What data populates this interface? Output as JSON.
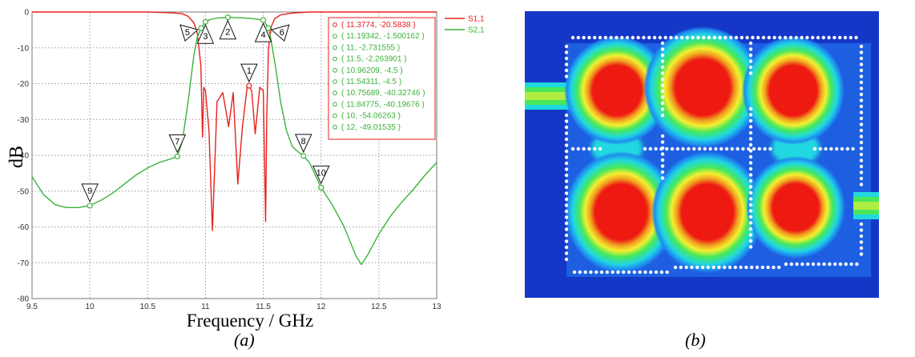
{
  "chart_data": {
    "type": "line",
    "xlabel": "Frequency / GHz",
    "ylabel": "dB",
    "xlim": [
      9.5,
      13
    ],
    "ylim": [
      -80,
      0
    ],
    "x_ticks": [
      "9.5",
      "10",
      "10.5",
      "11",
      "11.5",
      "12",
      "12.5",
      "13"
    ],
    "y_ticks": [
      "0",
      "-10",
      "-20",
      "-30",
      "-40",
      "-50",
      "-60",
      "-70",
      "-80"
    ],
    "grid": true,
    "legend_position": "top-right, outside plot",
    "series": [
      {
        "name": "S1,1",
        "color": "#e8201c",
        "x": [
          9.5,
          10.5,
          10.7,
          10.8,
          10.85,
          10.9,
          10.93,
          10.96,
          10.975,
          10.985,
          11.0,
          11.03,
          11.06,
          11.1,
          11.15,
          11.2,
          11.24,
          11.28,
          11.32,
          11.36,
          11.377,
          11.4,
          11.43,
          11.47,
          11.5,
          11.52,
          11.53,
          11.545,
          11.57,
          11.6,
          11.65,
          11.75,
          11.9,
          13.0
        ],
        "y": [
          0,
          0,
          -0.2,
          -0.5,
          -1.2,
          -3,
          -6,
          -15,
          -35,
          -21,
          -22,
          -33,
          -61,
          -25,
          -22.5,
          -32,
          -22.5,
          -48,
          -32,
          -21,
          -20.6,
          -22,
          -34,
          -21,
          -22,
          -58.5,
          -30,
          -10,
          -4,
          -1.8,
          -0.8,
          -0.3,
          0,
          0
        ]
      },
      {
        "name": "S2,1",
        "color": "#3bb23b",
        "x": [
          9.5,
          9.6,
          9.7,
          9.8,
          9.9,
          10.0,
          10.1,
          10.2,
          10.3,
          10.4,
          10.5,
          10.6,
          10.7,
          10.757,
          10.8,
          10.85,
          10.9,
          10.93,
          10.962,
          10.98,
          11.0,
          11.05,
          11.1,
          11.193,
          11.3,
          11.4,
          11.5,
          11.52,
          11.543,
          11.56,
          11.6,
          11.65,
          11.7,
          11.75,
          11.8,
          11.848,
          11.9,
          12.0,
          12.1,
          12.2,
          12.25,
          12.3,
          12.35,
          12.4,
          12.5,
          12.6,
          12.7,
          12.8,
          12.9,
          13.0
        ],
        "y": [
          -46,
          -51,
          -53.8,
          -54.6,
          -54.6,
          -54.06,
          -52.5,
          -50.5,
          -48,
          -45.5,
          -43.5,
          -42,
          -41,
          -40.3,
          -36,
          -25,
          -12,
          -7,
          -4.5,
          -3.7,
          -2.73,
          -2,
          -1.7,
          -1.5,
          -1.6,
          -1.8,
          -2.26,
          -3.2,
          -4.5,
          -6.5,
          -14,
          -25,
          -33,
          -37.5,
          -39,
          -40.2,
          -42,
          -49.0,
          -54,
          -60,
          -64,
          -68,
          -70.5,
          -68,
          -62,
          -57,
          -53,
          -49.5,
          -45.5,
          -42
        ]
      }
    ],
    "markers": [
      {
        "label": "1",
        "x": 11.3774,
        "y": -20.5838,
        "side": "above"
      },
      {
        "label": "2",
        "x": 11.19342,
        "y": -1.500162,
        "side": "below"
      },
      {
        "label": "3",
        "x": 11,
        "y": -2.731555,
        "side": "below"
      },
      {
        "label": "4",
        "x": 11.5,
        "y": -2.263901,
        "side": "below"
      },
      {
        "label": "5",
        "x": 10.96209,
        "y": -4.5,
        "side": "left"
      },
      {
        "label": "6",
        "x": 11.54311,
        "y": -4.5,
        "side": "right"
      },
      {
        "label": "7",
        "x": 10.75689,
        "y": -40.32746,
        "side": "above"
      },
      {
        "label": "8",
        "x": 11.84775,
        "y": -40.19676,
        "side": "above"
      },
      {
        "label": "9",
        "x": 10,
        "y": -54.06263,
        "side": "above"
      },
      {
        "label": "10",
        "x": 12,
        "y": -49.01535,
        "side": "above"
      }
    ],
    "marker_table": [
      "( 11.3774, -20.5838 )",
      "( 11.19342, -1.500162 )",
      "( 11, -2.731555 )",
      "( 11.5, -2.263901 )",
      "( 10.96209, -4.5 )",
      "( 11.54311, -4.5 )",
      "( 10.75689, -40.32746 )",
      "( 11.84775, -40.19676 )",
      "( 10, -54.06263 )",
      "( 12, -49.01535 )"
    ]
  },
  "captions": {
    "left": "(a)",
    "right": "(b)"
  },
  "field_plot": {
    "colormap": [
      "#1530c8",
      "#1e8cf0",
      "#20d8e0",
      "#48e85a",
      "#f4f030",
      "#f0a020",
      "#ee1a12"
    ],
    "background_color": "#1537c7"
  }
}
